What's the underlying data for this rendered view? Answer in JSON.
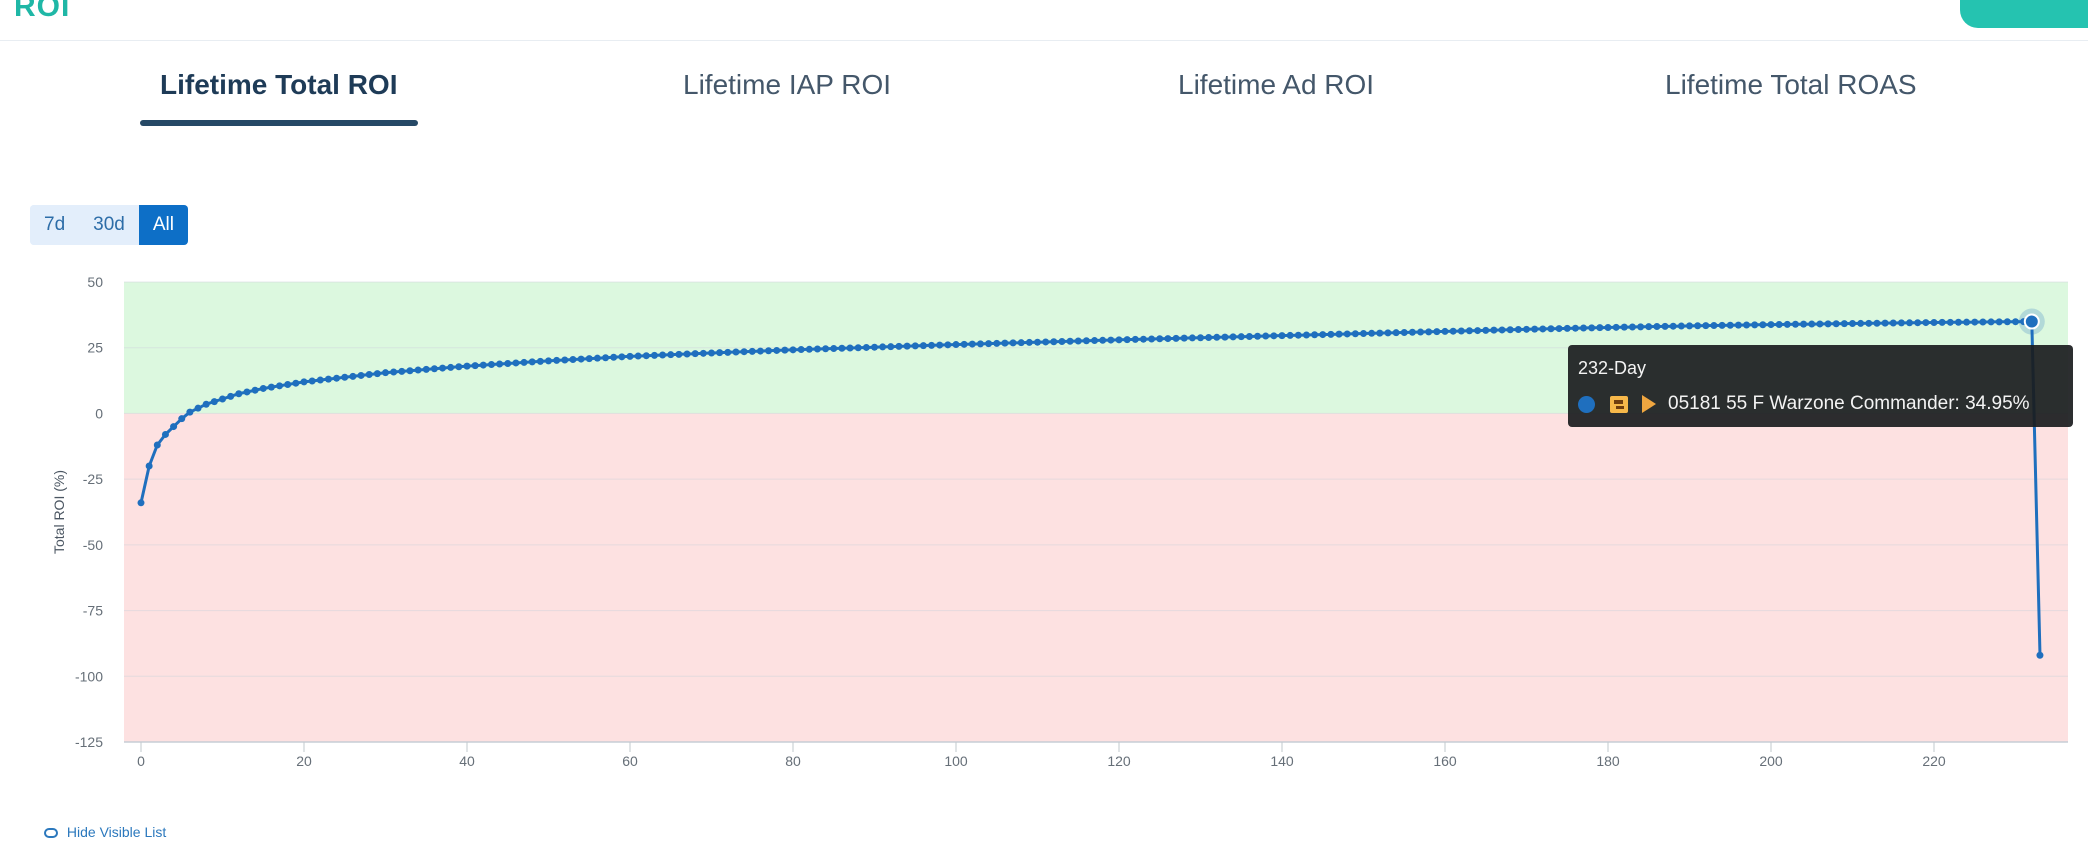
{
  "header": {
    "brand_fragment": "ROI"
  },
  "tabs": [
    {
      "label": "Lifetime Total ROI",
      "active": true
    },
    {
      "label": "Lifetime IAP ROI",
      "active": false
    },
    {
      "label": "Lifetime Ad ROI",
      "active": false
    },
    {
      "label": "Lifetime Total ROAS",
      "active": false
    }
  ],
  "range": {
    "buttons": [
      "7d",
      "30d",
      "All"
    ],
    "selected": "All"
  },
  "chart_data": {
    "type": "line",
    "title": "",
    "xlabel": "",
    "ylabel": "Total ROI (%)",
    "xlim": [
      0,
      234
    ],
    "ylim": [
      -125,
      50
    ],
    "x_ticks": [
      0,
      20,
      40,
      60,
      80,
      100,
      120,
      140,
      160,
      180,
      200,
      220
    ],
    "y_ticks": [
      50,
      25,
      0,
      -25,
      -50,
      -75,
      -100,
      -125
    ],
    "bands": [
      {
        "from": 0,
        "to": 50,
        "color": "#dcf8df"
      },
      {
        "from": -125,
        "to": 0,
        "color": "#fde1e1"
      }
    ],
    "series": [
      {
        "color": "#1f6fbe",
        "x": [
          0,
          1,
          2,
          3,
          4,
          5,
          6,
          7,
          8,
          10,
          12,
          15,
          20,
          30,
          40,
          50,
          60,
          70,
          80,
          90,
          100,
          110,
          120,
          130,
          140,
          150,
          160,
          170,
          180,
          190,
          200,
          210,
          220,
          230,
          232,
          233
        ],
        "y": [
          -34,
          -20,
          -12,
          -8,
          -5,
          -2,
          0.5,
          2,
          3.5,
          5.5,
          7.5,
          9.5,
          12,
          15.5,
          18,
          20,
          21.7,
          23,
          24.2,
          25.2,
          26.2,
          27.1,
          28,
          28.8,
          29.6,
          30.4,
          31.2,
          32,
          32.7,
          33.3,
          33.8,
          34.2,
          34.6,
          34.9,
          34.95,
          -92
        ]
      }
    ],
    "tooltip": {
      "day_label": "232-Day",
      "series_label": "05181 55 F Warzone Commander: 34.95%",
      "color": "#1f6fbe"
    }
  },
  "footer": {
    "hide_visible_list": "Hide Visible List"
  }
}
